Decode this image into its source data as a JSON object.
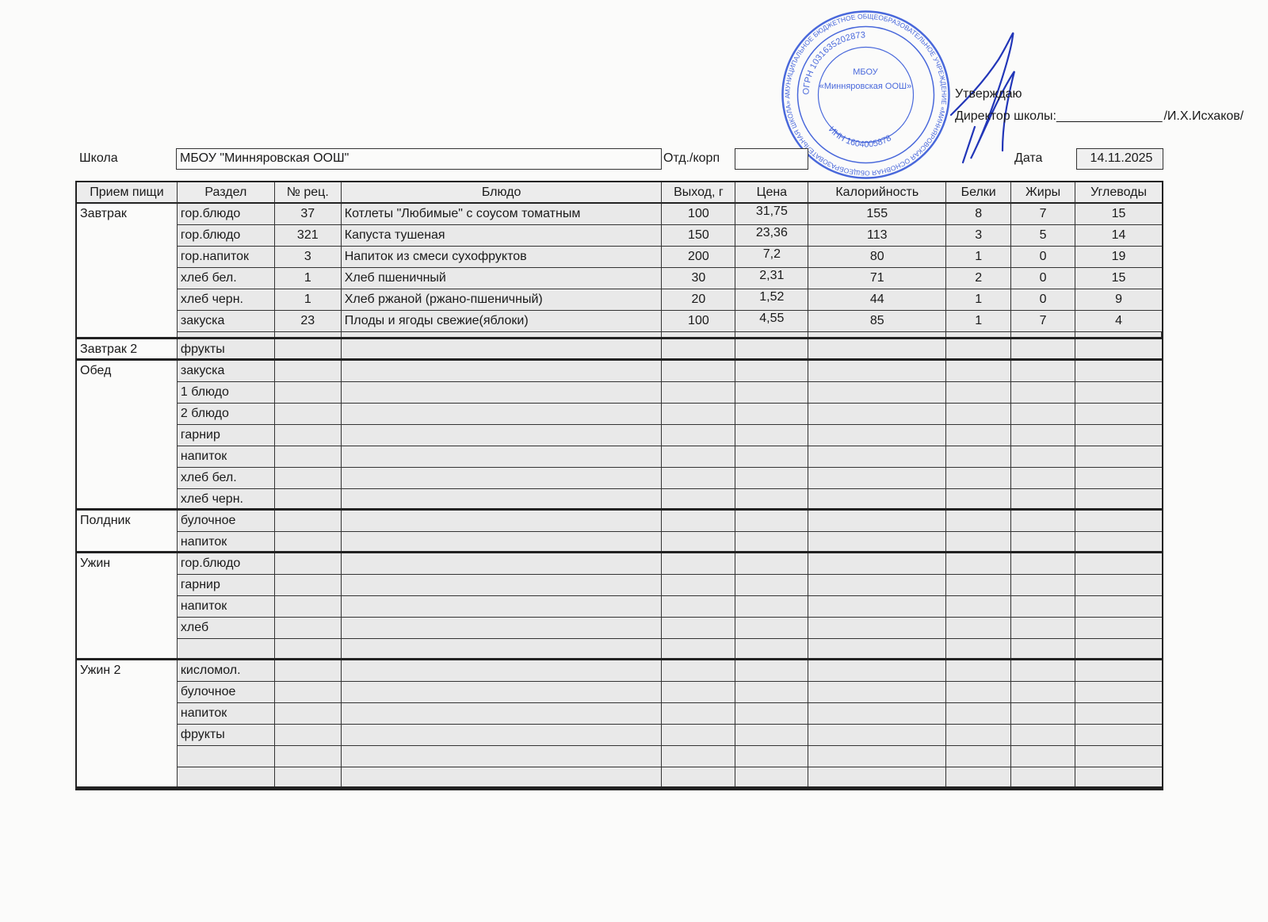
{
  "approval": {
    "approve_label": "Утверждаю",
    "director_label": "Директор школы:",
    "signature_line": "_______________",
    "director_name": "/И.Х.Исхаков/"
  },
  "stamp": {
    "outer_text": "МУНИЦИПАЛЬНОЕ БЮДЖЕТНОЕ ОБЩЕОБРАЗОВАТЕЛЬНОЕ УЧРЕЖДЕНИЕ «МИННЯРОВСКАЯ ОСНОВНАЯ ОБЩЕОБРАЗОВАТЕЛЬНАЯ ШКОЛА» АКТАНЫШСКОГО МУНИЦИПАЛЬНОГО РАЙОНА РЕСПУБЛИКИ ТАТАРСТАН",
    "ogrn": "ОГРН 1031635202873",
    "inn": "ИНН 1604005878",
    "center_top": "МБОУ",
    "center_name": "«Минняровская ООШ»",
    "color": "#2a4fd6"
  },
  "header": {
    "school_label": "Школа",
    "school_value": "МБОУ \"Минняровская ООШ\"",
    "dept_label": "Отд./корп",
    "dept_value": "",
    "date_label": "Дата",
    "date_value": "14.11.2025"
  },
  "table": {
    "columns": [
      "Прием пищи",
      "Раздел",
      "№ рец.",
      "Блюдо",
      "Выход, г",
      "Цена",
      "Калорийность",
      "Белки",
      "Жиры",
      "Углеводы"
    ],
    "groups": [
      {
        "meal": "Завтрак",
        "spacer": true,
        "rows": [
          [
            "гор.блюдо",
            "37",
            "Котлеты \"Любимые\" с соусом томатным",
            "100",
            "31,75",
            "155",
            "8",
            "7",
            "15"
          ],
          [
            "гор.блюдо",
            "321",
            "Капуста тушеная",
            "150",
            "23,36",
            "113",
            "3",
            "5",
            "14"
          ],
          [
            "гор.напиток",
            "3",
            "Напиток из смеси сухофруктов",
            "200",
            "7,2",
            "80",
            "1",
            "0",
            "19"
          ],
          [
            "хлеб бел.",
            "1",
            "Хлеб пшеничный",
            "30",
            "2,31",
            "71",
            "2",
            "0",
            "15"
          ],
          [
            "хлеб черн.",
            "1",
            "Хлеб ржаной (ржано-пшеничный)",
            "20",
            "1,52",
            "44",
            "1",
            "0",
            "9"
          ],
          [
            "закуска",
            "23",
            "Плоды и ягоды свежие(яблоки)",
            "100",
            "4,55",
            "85",
            "1",
            "7",
            "4"
          ]
        ]
      },
      {
        "meal": "Завтрак 2",
        "rows": [
          [
            "фрукты",
            "",
            "",
            "",
            "",
            "",
            "",
            "",
            ""
          ]
        ]
      },
      {
        "meal": "Обед",
        "rows": [
          [
            "закуска",
            "",
            "",
            "",
            "",
            "",
            "",
            "",
            ""
          ],
          [
            "1 блюдо",
            "",
            "",
            "",
            "",
            "",
            "",
            "",
            ""
          ],
          [
            "2 блюдо",
            "",
            "",
            "",
            "",
            "",
            "",
            "",
            ""
          ],
          [
            "гарнир",
            "",
            "",
            "",
            "",
            "",
            "",
            "",
            ""
          ],
          [
            "напиток",
            "",
            "",
            "",
            "",
            "",
            "",
            "",
            ""
          ],
          [
            "хлеб бел.",
            "",
            "",
            "",
            "",
            "",
            "",
            "",
            ""
          ],
          [
            "хлеб черн.",
            "",
            "",
            "",
            "",
            "",
            "",
            "",
            ""
          ]
        ]
      },
      {
        "meal": "Полдник",
        "rows": [
          [
            "булочное",
            "",
            "",
            "",
            "",
            "",
            "",
            "",
            ""
          ],
          [
            "напиток",
            "",
            "",
            "",
            "",
            "",
            "",
            "",
            ""
          ]
        ]
      },
      {
        "meal": "Ужин",
        "rows": [
          [
            "гор.блюдо",
            "",
            "",
            "",
            "",
            "",
            "",
            "",
            ""
          ],
          [
            "гарнир",
            "",
            "",
            "",
            "",
            "",
            "",
            "",
            ""
          ],
          [
            "напиток",
            "",
            "",
            "",
            "",
            "",
            "",
            "",
            ""
          ],
          [
            "хлеб",
            "",
            "",
            "",
            "",
            "",
            "",
            "",
            ""
          ],
          [
            "",
            "",
            "",
            "",
            "",
            "",
            "",
            "",
            ""
          ]
        ]
      },
      {
        "meal": "Ужин 2",
        "rows": [
          [
            "кисломол.",
            "",
            "",
            "",
            "",
            "",
            "",
            "",
            ""
          ],
          [
            "булочное",
            "",
            "",
            "",
            "",
            "",
            "",
            "",
            ""
          ],
          [
            "напиток",
            "",
            "",
            "",
            "",
            "",
            "",
            "",
            ""
          ],
          [
            "фрукты",
            "",
            "",
            "",
            "",
            "",
            "",
            "",
            ""
          ],
          [
            "",
            "",
            "",
            "",
            "",
            "",
            "",
            "",
            ""
          ],
          [
            "",
            "",
            "",
            "",
            "",
            "",
            "",
            "",
            ""
          ]
        ]
      }
    ]
  }
}
